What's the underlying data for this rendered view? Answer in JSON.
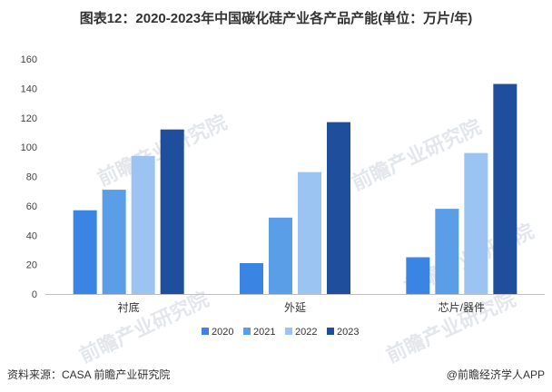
{
  "title": "图表12：2020-2023年中国碳化硅产业各产品产能(单位：万片/年)",
  "watermark": "前瞻产业研究院",
  "source": "资料来源：CASA 前瞻产业研究院",
  "brand": "@前瞻经济学人APP",
  "colors": {
    "s2020": "#3a84e3",
    "s2021": "#5b9ee8",
    "s2022": "#9bc4f2",
    "s2023": "#1f4e9c",
    "axis": "#bfbfbf",
    "watermark": "#e3e7ec"
  },
  "chart_data": {
    "type": "bar",
    "title": "2020-2023年中国碳化硅产业各产品产能(单位：万片/年)",
    "categories": [
      "衬底",
      "外延",
      "芯片/器件"
    ],
    "series": [
      {
        "name": "2020",
        "values": [
          57,
          21,
          25
        ]
      },
      {
        "name": "2021",
        "values": [
          71,
          52,
          58
        ]
      },
      {
        "name": "2022",
        "values": [
          94,
          83,
          96
        ]
      },
      {
        "name": "2023",
        "values": [
          112,
          117,
          143
        ]
      }
    ],
    "yticks": [
      "0",
      "20",
      "40",
      "60",
      "80",
      "100",
      "120",
      "140",
      "160"
    ],
    "ylim": [
      0,
      160
    ],
    "xlabel": "",
    "ylabel": "",
    "legend_position": "bottom",
    "grid": false
  }
}
